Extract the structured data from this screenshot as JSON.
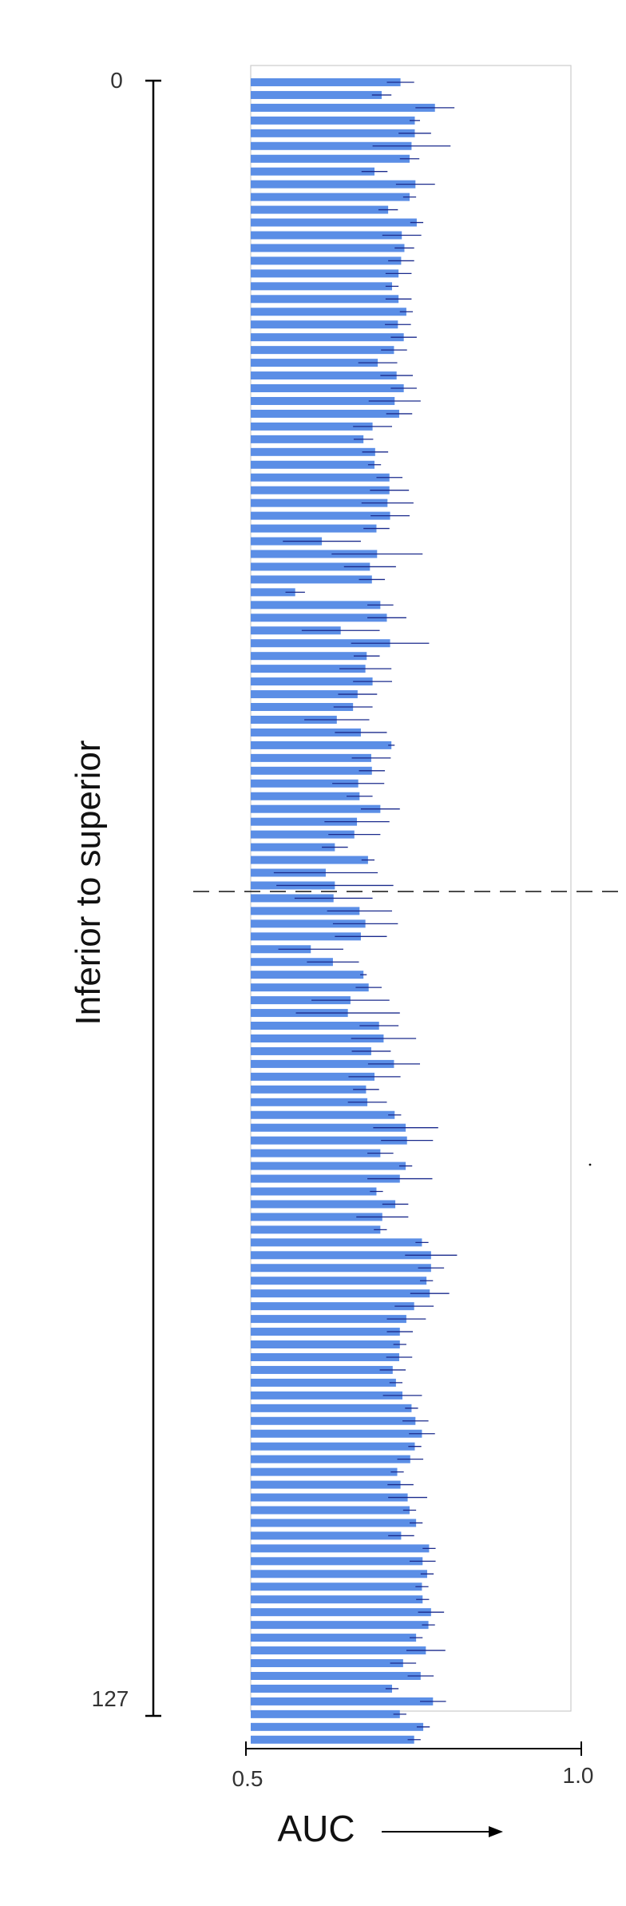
{
  "chart_data": {
    "type": "bar",
    "orientation": "horizontal",
    "ylabel": "Inferior to superior",
    "y_tick_labels": [
      "0",
      "127"
    ],
    "xlabel": "AUC",
    "x_tick_labels": [
      "0.5",
      "1.0"
    ],
    "xlim": [
      0.5,
      1.0
    ],
    "ylim": [
      0,
      127
    ],
    "grid": false,
    "divider_index": 63.5,
    "colors": {
      "bar": "#5b8ee6",
      "error": "#1a2a8c",
      "axis": "#000000",
      "frame": "#cccccc"
    },
    "series": [
      {
        "values": [
          0.728,
          0.699,
          0.781,
          0.75,
          0.75,
          0.745,
          0.742,
          0.688,
          0.751,
          0.742,
          0.709,
          0.753,
          0.73,
          0.734,
          0.729,
          0.725,
          0.715,
          0.725,
          0.737,
          0.724,
          0.733,
          0.718,
          0.693,
          0.722,
          0.733,
          0.719,
          0.726,
          0.685,
          0.671,
          0.689,
          0.688,
          0.711,
          0.711,
          0.708,
          0.712,
          0.691,
          0.607,
          0.692,
          0.681,
          0.684,
          0.566,
          0.697,
          0.707,
          0.636,
          0.712,
          0.676,
          0.674,
          0.685,
          0.662,
          0.655,
          0.63,
          0.667,
          0.714,
          0.683,
          0.684,
          0.663,
          0.665,
          0.697,
          0.661,
          0.657,
          0.627,
          0.678,
          0.613,
          0.627,
          0.625,
          0.665,
          0.674,
          0.667,
          0.59,
          0.624,
          0.671,
          0.679,
          0.651,
          0.647,
          0.695,
          0.702,
          0.683,
          0.718,
          0.688,
          0.675,
          0.677,
          0.719,
          0.736,
          0.738,
          0.697,
          0.736,
          0.727,
          0.691,
          0.72,
          0.7,
          0.697,
          0.761,
          0.775,
          0.775,
          0.768,
          0.773,
          0.749,
          0.737,
          0.727,
          0.727,
          0.726,
          0.716,
          0.721,
          0.731,
          0.745,
          0.751,
          0.761,
          0.75,
          0.743,
          0.723,
          0.728,
          0.739,
          0.742,
          0.752,
          0.729,
          0.772,
          0.762,
          0.769,
          0.761,
          0.762,
          0.775,
          0.771,
          0.752,
          0.767,
          0.732,
          0.759,
          0.715,
          0.778,
          0.727,
          0.763,
          0.749
        ],
        "errors": [
          0.021,
          0.015,
          0.03,
          0.008,
          0.025,
          0.06,
          0.015,
          0.02,
          0.03,
          0.01,
          0.015,
          0.01,
          0.03,
          0.015,
          0.02,
          0.02,
          0.01,
          0.02,
          0.01,
          0.02,
          0.02,
          0.02,
          0.03,
          0.025,
          0.02,
          0.04,
          0.02,
          0.03,
          0.015,
          0.02,
          0.01,
          0.02,
          0.03,
          0.04,
          0.03,
          0.02,
          0.06,
          0.07,
          0.04,
          0.02,
          0.015,
          0.02,
          0.03,
          0.06,
          0.06,
          0.02,
          0.04,
          0.03,
          0.03,
          0.03,
          0.05,
          0.04,
          0.005,
          0.03,
          0.02,
          0.04,
          0.02,
          0.03,
          0.05,
          0.04,
          0.02,
          0.01,
          0.08,
          0.09,
          0.06,
          0.05,
          0.05,
          0.04,
          0.05,
          0.04,
          0.005,
          0.02,
          0.06,
          0.08,
          0.03,
          0.05,
          0.03,
          0.04,
          0.04,
          0.02,
          0.03,
          0.01,
          0.05,
          0.04,
          0.02,
          0.01,
          0.05,
          0.01,
          0.02,
          0.04,
          0.01,
          0.01,
          0.04,
          0.02,
          0.01,
          0.03,
          0.03,
          0.03,
          0.02,
          0.01,
          0.02,
          0.02,
          0.01,
          0.03,
          0.01,
          0.02,
          0.02,
          0.01,
          0.02,
          0.01,
          0.02,
          0.03,
          0.01,
          0.01,
          0.02,
          0.01,
          0.02,
          0.01,
          0.01,
          0.01,
          0.02,
          0.01,
          0.01,
          0.03,
          0.02,
          0.02,
          0.01,
          0.02,
          0.01,
          0.01,
          0.01
        ]
      }
    ]
  }
}
